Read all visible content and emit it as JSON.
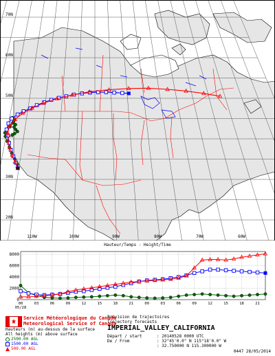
{
  "map": {
    "lat_labels": [
      "70N",
      "60N",
      "50N",
      "40N",
      "30N",
      "20N"
    ],
    "lon_labels": [
      "110W",
      "100W",
      "90W",
      "80W",
      "70W",
      "60W"
    ],
    "trajectories": [
      {
        "name": "2500.00 AGL",
        "color": "#006400",
        "marker": "circle-filled",
        "points": [
          [
            -115.3,
            32.8
          ],
          [
            -115.6,
            33.7
          ],
          [
            -116.5,
            35.0
          ],
          [
            -117.6,
            36.5
          ],
          [
            -118.5,
            38.0
          ],
          [
            -119.4,
            39.4
          ],
          [
            -120.2,
            40.6
          ],
          [
            -120.5,
            41.5
          ],
          [
            -120.0,
            42.3
          ],
          [
            -119.3,
            43.0
          ],
          [
            -118.8,
            43.9
          ],
          [
            -118.5,
            44.8
          ],
          [
            -119.2,
            45.2
          ],
          [
            -118.6,
            44.3
          ],
          [
            -117.9,
            43.5
          ],
          [
            -118.2,
            42.9
          ],
          [
            -117.6,
            42.3
          ],
          [
            -117.0,
            41.8
          ],
          [
            -117.7,
            41.3
          ],
          [
            -118.3,
            41.0
          ]
        ]
      },
      {
        "name": "1500.00 AGL",
        "color": "#0000ff",
        "marker": "square-open",
        "points": [
          [
            -115.3,
            32.8
          ],
          [
            -116.0,
            34.1
          ],
          [
            -117.0,
            35.7
          ],
          [
            -118.0,
            37.3
          ],
          [
            -118.8,
            39.0
          ],
          [
            -119.5,
            40.8
          ],
          [
            -120.2,
            42.3
          ],
          [
            -120.0,
            43.8
          ],
          [
            -119.3,
            45.0
          ],
          [
            -117.8,
            46.0
          ],
          [
            -116.2,
            46.8
          ],
          [
            -114.3,
            47.5
          ],
          [
            -112.5,
            48.3
          ],
          [
            -110.4,
            49.0
          ],
          [
            -108.3,
            49.6
          ],
          [
            -106.0,
            50.1
          ],
          [
            -103.8,
            50.5
          ],
          [
            -101.5,
            50.9
          ],
          [
            -99.0,
            51.2
          ],
          [
            -96.5,
            51.4
          ],
          [
            -94.0,
            51.5
          ],
          [
            -91.5,
            51.5
          ],
          [
            -89.0,
            51.4
          ],
          [
            -86.5,
            51.3
          ],
          [
            -84.5,
            51.2
          ]
        ]
      },
      {
        "name": "500.00 AGL",
        "color": "#ff0000",
        "marker": "triangle",
        "points": [
          [
            -115.3,
            32.8
          ],
          [
            -116.3,
            34.3
          ],
          [
            -117.4,
            36.0
          ],
          [
            -118.4,
            37.8
          ],
          [
            -119.2,
            39.6
          ],
          [
            -119.7,
            41.4
          ],
          [
            -119.5,
            43.2
          ],
          [
            -118.3,
            44.8
          ],
          [
            -116.4,
            46.3
          ],
          [
            -113.8,
            47.6
          ],
          [
            -110.6,
            48.8
          ],
          [
            -106.6,
            49.9
          ],
          [
            -102.0,
            50.8
          ],
          [
            -96.7,
            51.6
          ],
          [
            -90.6,
            52.1
          ],
          [
            -84.4,
            52.4
          ],
          [
            -78.2,
            52.5
          ],
          [
            -72.3,
            52.2
          ],
          [
            -66.6,
            51.8
          ],
          [
            -61.3,
            51.2
          ],
          [
            -56.5,
            50.5
          ]
        ]
      }
    ]
  },
  "chart": {
    "title": "Hauteur/Temps - Height/Time",
    "y_ticks": [
      "8000",
      "6000",
      "4000",
      "2000",
      "0"
    ],
    "x_ticks": [
      "00",
      "03",
      "06",
      "09",
      "12",
      "15",
      "18",
      "21",
      "00",
      "03",
      "06",
      "09",
      "12",
      "15",
      "18",
      "21"
    ],
    "date_label": "05/28",
    "chart_data": {
      "type": "line",
      "xlabel": "",
      "ylabel": "",
      "ylim": [
        0,
        8500
      ],
      "x_hours": [
        0,
        3,
        6,
        9,
        12,
        15,
        18,
        21,
        24,
        27,
        30,
        33,
        36,
        39,
        42,
        45,
        48,
        51,
        54,
        57,
        60,
        63,
        66,
        69,
        72,
        75,
        78,
        81,
        84,
        87,
        90,
        93
      ],
      "series": [
        {
          "name": "2500.00 AGL",
          "color": "#006400",
          "values": [
            2500,
            1200,
            700,
            400,
            300,
            250,
            300,
            400,
            450,
            500,
            600,
            700,
            800,
            700,
            500,
            400,
            300,
            250,
            300,
            400,
            600,
            800,
            900,
            1000,
            900,
            800,
            700,
            600,
            700,
            800,
            900,
            1000
          ]
        },
        {
          "name": "1500.00 AGL",
          "color": "#0000ff",
          "values": [
            1500,
            1100,
            900,
            800,
            900,
            1000,
            1200,
            1400,
            1500,
            1700,
            1900,
            2100,
            2300,
            2600,
            2900,
            3200,
            3400,
            3500,
            3600,
            3800,
            4000,
            4300,
            4700,
            5000,
            5300,
            5300,
            5200,
            5100,
            5000,
            4900,
            4800,
            4700
          ]
        },
        {
          "name": "500.00 AGL",
          "color": "#ff0000",
          "values": [
            500,
            500,
            600,
            700,
            800,
            1000,
            1400,
            1700,
            1900,
            2100,
            2300,
            2500,
            2700,
            2900,
            3100,
            3200,
            3300,
            3400,
            3500,
            3600,
            3800,
            4200,
            5600,
            7000,
            7100,
            7100,
            7000,
            7200,
            7500,
            7700,
            7900,
            8100
          ]
        }
      ]
    }
  },
  "legend": {
    "line1": "Hauteurs (m) au-dessus de la surface",
    "line2": "All heights (m) above surface",
    "items": [
      {
        "label": "2500.00 AGL",
        "color": "#006400"
      },
      {
        "label": "1500.00 AGL",
        "color": "#0000ff"
      },
      {
        "label": "500.00 AGL",
        "color": "#ff0000"
      }
    ]
  },
  "agency": {
    "fr": "Service Météorologique du Canada",
    "en": "Meteorological Service of Canada"
  },
  "forecast": {
    "title_fr": "Prévision de trajectoires",
    "title_en": "Trajectory forecasts",
    "location": "IMPERIAL_VALLEY_CALIFORNIA",
    "depart_label": "Départ  / start",
    "depart_value": ": 20140528 0000 UTC",
    "from_label": "De     / From",
    "from_value_1": ": 32°45'0.0\" N 115°18'0.0\" W",
    "from_value_2": ": 32.750000 N 115.300000 W"
  },
  "stamp": "0447 28/05/2014"
}
